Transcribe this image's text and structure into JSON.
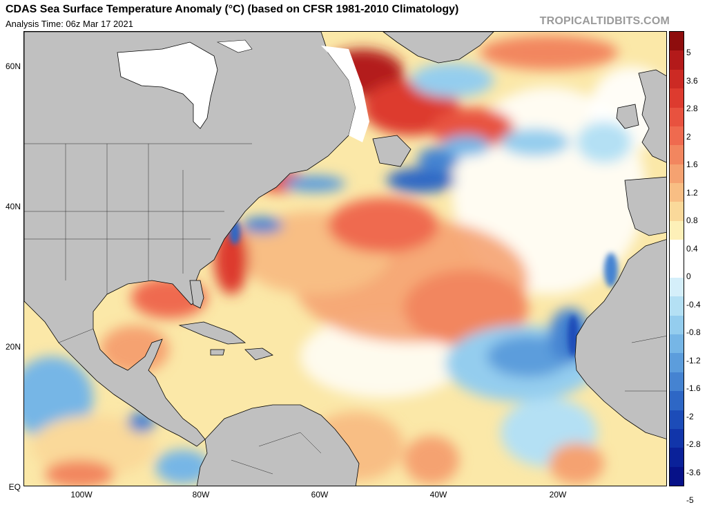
{
  "title": "CDAS Sea Surface Temperature Anomaly (°C) (based on CFSR 1981-2010 Climatology)",
  "subtitle": "Analysis Time: 06z Mar 17 2021",
  "credit": "TROPICALTIDBITS.COM",
  "lat_labels": [
    "60N",
    "40N",
    "20N",
    "EQ"
  ],
  "lon_labels": [
    "100W",
    "80W",
    "60W",
    "40W",
    "20W"
  ],
  "colorbar": {
    "labels": [
      "5",
      "3.6",
      "2.8",
      "2",
      "1.6",
      "1.2",
      "0.8",
      "0.4",
      "0",
      "-0.4",
      "-0.8",
      "-1.2",
      "-1.6",
      "-2",
      "-2.8",
      "-3.6",
      "-5"
    ],
    "colors": [
      "#8e0d0d",
      "#b31a1a",
      "#cc2a24",
      "#dd3b2f",
      "#e8523f",
      "#ef6a4f",
      "#f2865f",
      "#f5a271",
      "#f8be84",
      "#fad99a",
      "#fdf0b8",
      "#ffffff",
      "#ffffff",
      "#d5effa",
      "#b4e0f4",
      "#94cdee",
      "#76b6e6",
      "#5c9ddc",
      "#4583d1",
      "#2e67c5",
      "#1c4cb8",
      "#1135aa",
      "#0a2199",
      "#061188"
    ]
  },
  "colors": {
    "land": "#c0c0c0",
    "ice": "#ffffff",
    "border": "#000000"
  }
}
